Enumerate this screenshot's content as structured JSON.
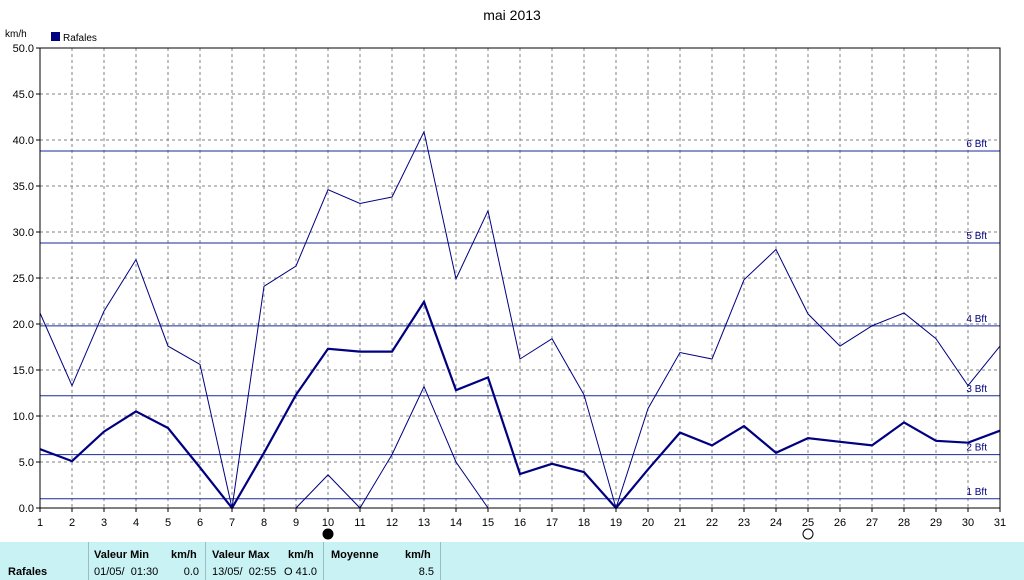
{
  "chart_data": {
    "type": "line",
    "title": "mai 2013",
    "ylabel": "km/h",
    "legend": {
      "label": "Rafales",
      "color": "#000080",
      "placement": "top-left"
    },
    "xlim": [
      1,
      31
    ],
    "ylim": [
      0,
      50
    ],
    "x_ticks": [
      1,
      2,
      3,
      4,
      5,
      6,
      7,
      8,
      9,
      10,
      11,
      12,
      13,
      14,
      15,
      16,
      17,
      18,
      19,
      20,
      21,
      22,
      23,
      24,
      25,
      26,
      27,
      28,
      29,
      30,
      31
    ],
    "y_ticks": [
      "0.0",
      "5.0",
      "10.0",
      "15.0",
      "20.0",
      "25.0",
      "30.0",
      "35.0",
      "40.0",
      "45.0",
      "50.0"
    ],
    "grid": true,
    "beaufort_lines": [
      {
        "label": "1 Bft",
        "value": 1
      },
      {
        "label": "2 Bft",
        "value": 5.8
      },
      {
        "label": "3 Bft",
        "value": 12.2
      },
      {
        "label": "4 Bft",
        "value": 19.8
      },
      {
        "label": "5 Bft",
        "value": 28.8
      },
      {
        "label": "6 Bft",
        "value": 38.8
      }
    ],
    "series": [
      {
        "role": "max",
        "values": [
          21.2,
          13.3,
          21.4,
          27.0,
          17.6,
          15.6,
          0,
          24.1,
          26.3,
          34.6,
          33.1,
          33.8,
          40.9,
          24.9,
          32.3,
          16.2,
          18.4,
          12.3,
          0,
          10.8,
          16.9,
          16.2,
          24.8,
          28.1,
          21.1,
          17.6,
          19.8,
          21.2,
          18.4,
          13.3,
          17.6
        ]
      },
      {
        "role": "mean",
        "values": [
          6.4,
          5.1,
          8.3,
          10.5,
          8.7,
          4.4,
          0,
          6.0,
          12.3,
          17.3,
          17.0,
          17.0,
          22.4,
          12.8,
          14.2,
          3.7,
          4.8,
          3.9,
          0,
          4.2,
          8.2,
          6.8,
          8.9,
          6.0,
          7.6,
          7.2,
          6.8,
          9.3,
          7.3,
          7.1,
          8.4
        ]
      },
      {
        "role": "min",
        "values": [
          null,
          null,
          null,
          null,
          null,
          null,
          null,
          null,
          0,
          3.6,
          0,
          5.8,
          13.2,
          5.0,
          0,
          null,
          null,
          null,
          null,
          null,
          null,
          null,
          null,
          null,
          null,
          null,
          null,
          null,
          null,
          null,
          null
        ]
      }
    ],
    "moon_markers": [
      {
        "day": 10,
        "phase": "new"
      },
      {
        "day": 25,
        "phase": "full"
      }
    ]
  },
  "footer": {
    "row_label": "Rafales",
    "min_header": "Valeur Min",
    "min_unit": "km/h",
    "min_time": "01/05/  01:30",
    "min_value": "0.0",
    "max_header": "Valeur Max",
    "max_unit": "km/h",
    "max_time": "13/05/  02:55",
    "max_value": "O 41.0",
    "mean_header": "Moyenne",
    "mean_unit": "km/h",
    "mean_value": "8.5"
  }
}
